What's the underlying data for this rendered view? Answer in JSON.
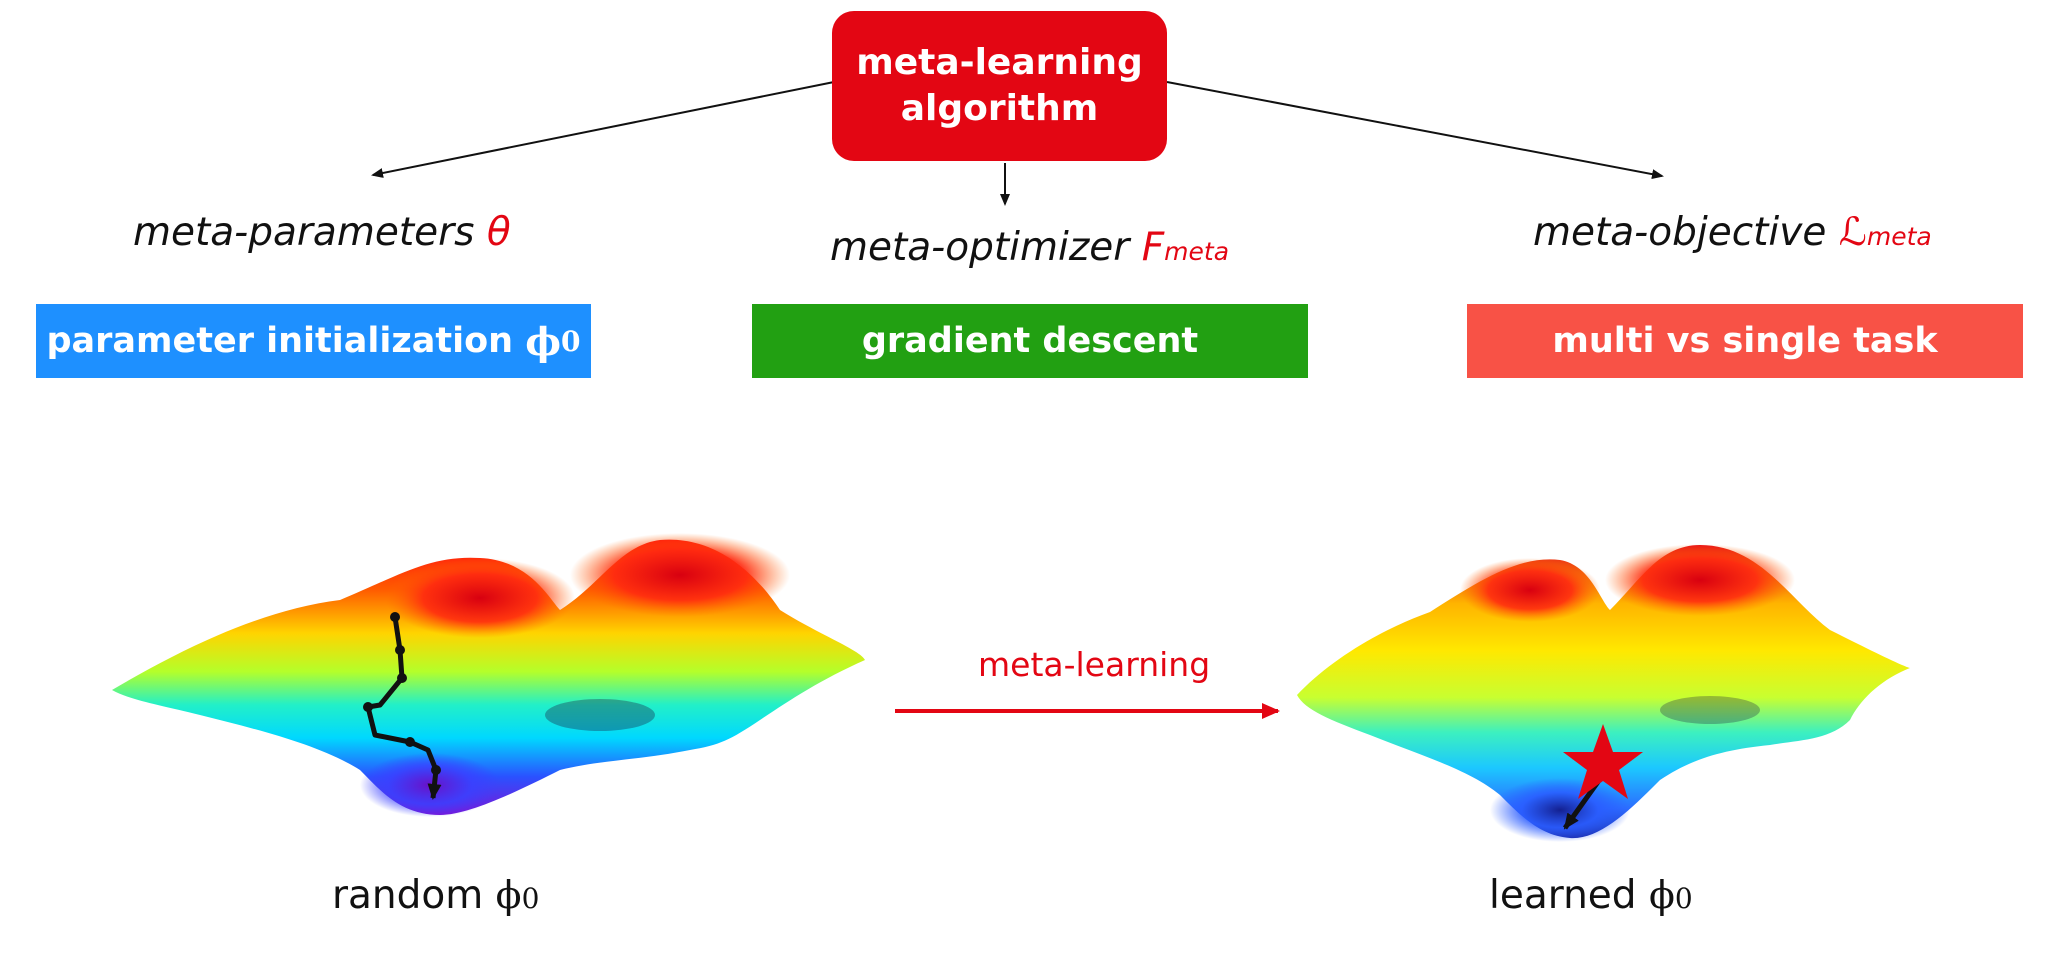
{
  "root": {
    "line1": "meta-learning",
    "line2": "algorithm",
    "color": "#e30613"
  },
  "components": [
    {
      "name": "meta-parameters",
      "symbol": "θ",
      "subscript": "",
      "symbol_color": "#e30613"
    },
    {
      "name": "meta-optimizer",
      "symbol": "F",
      "subscript": "meta",
      "symbol_color": "#e30613"
    },
    {
      "name": "meta-objective",
      "symbol": "ℒ",
      "subscript": "meta",
      "symbol_color": "#e30613"
    }
  ],
  "bars": [
    {
      "label": "parameter initialization",
      "phi": "ϕ",
      "phi_sub": "0",
      "color": "#1e90ff"
    },
    {
      "label": "gradient descent",
      "color": "#22a012"
    },
    {
      "label": "multi vs single task",
      "color": "#f85246"
    }
  ],
  "transition": {
    "label": "meta-learning",
    "color": "#e30613"
  },
  "landscapes": [
    {
      "caption_prefix": "random ",
      "phi": "ϕ",
      "phi_sub": "0"
    },
    {
      "caption_prefix": "learned ",
      "phi": "ϕ",
      "phi_sub": "0"
    }
  ],
  "marker_icon": "star-icon",
  "marker_color": "#e30613"
}
